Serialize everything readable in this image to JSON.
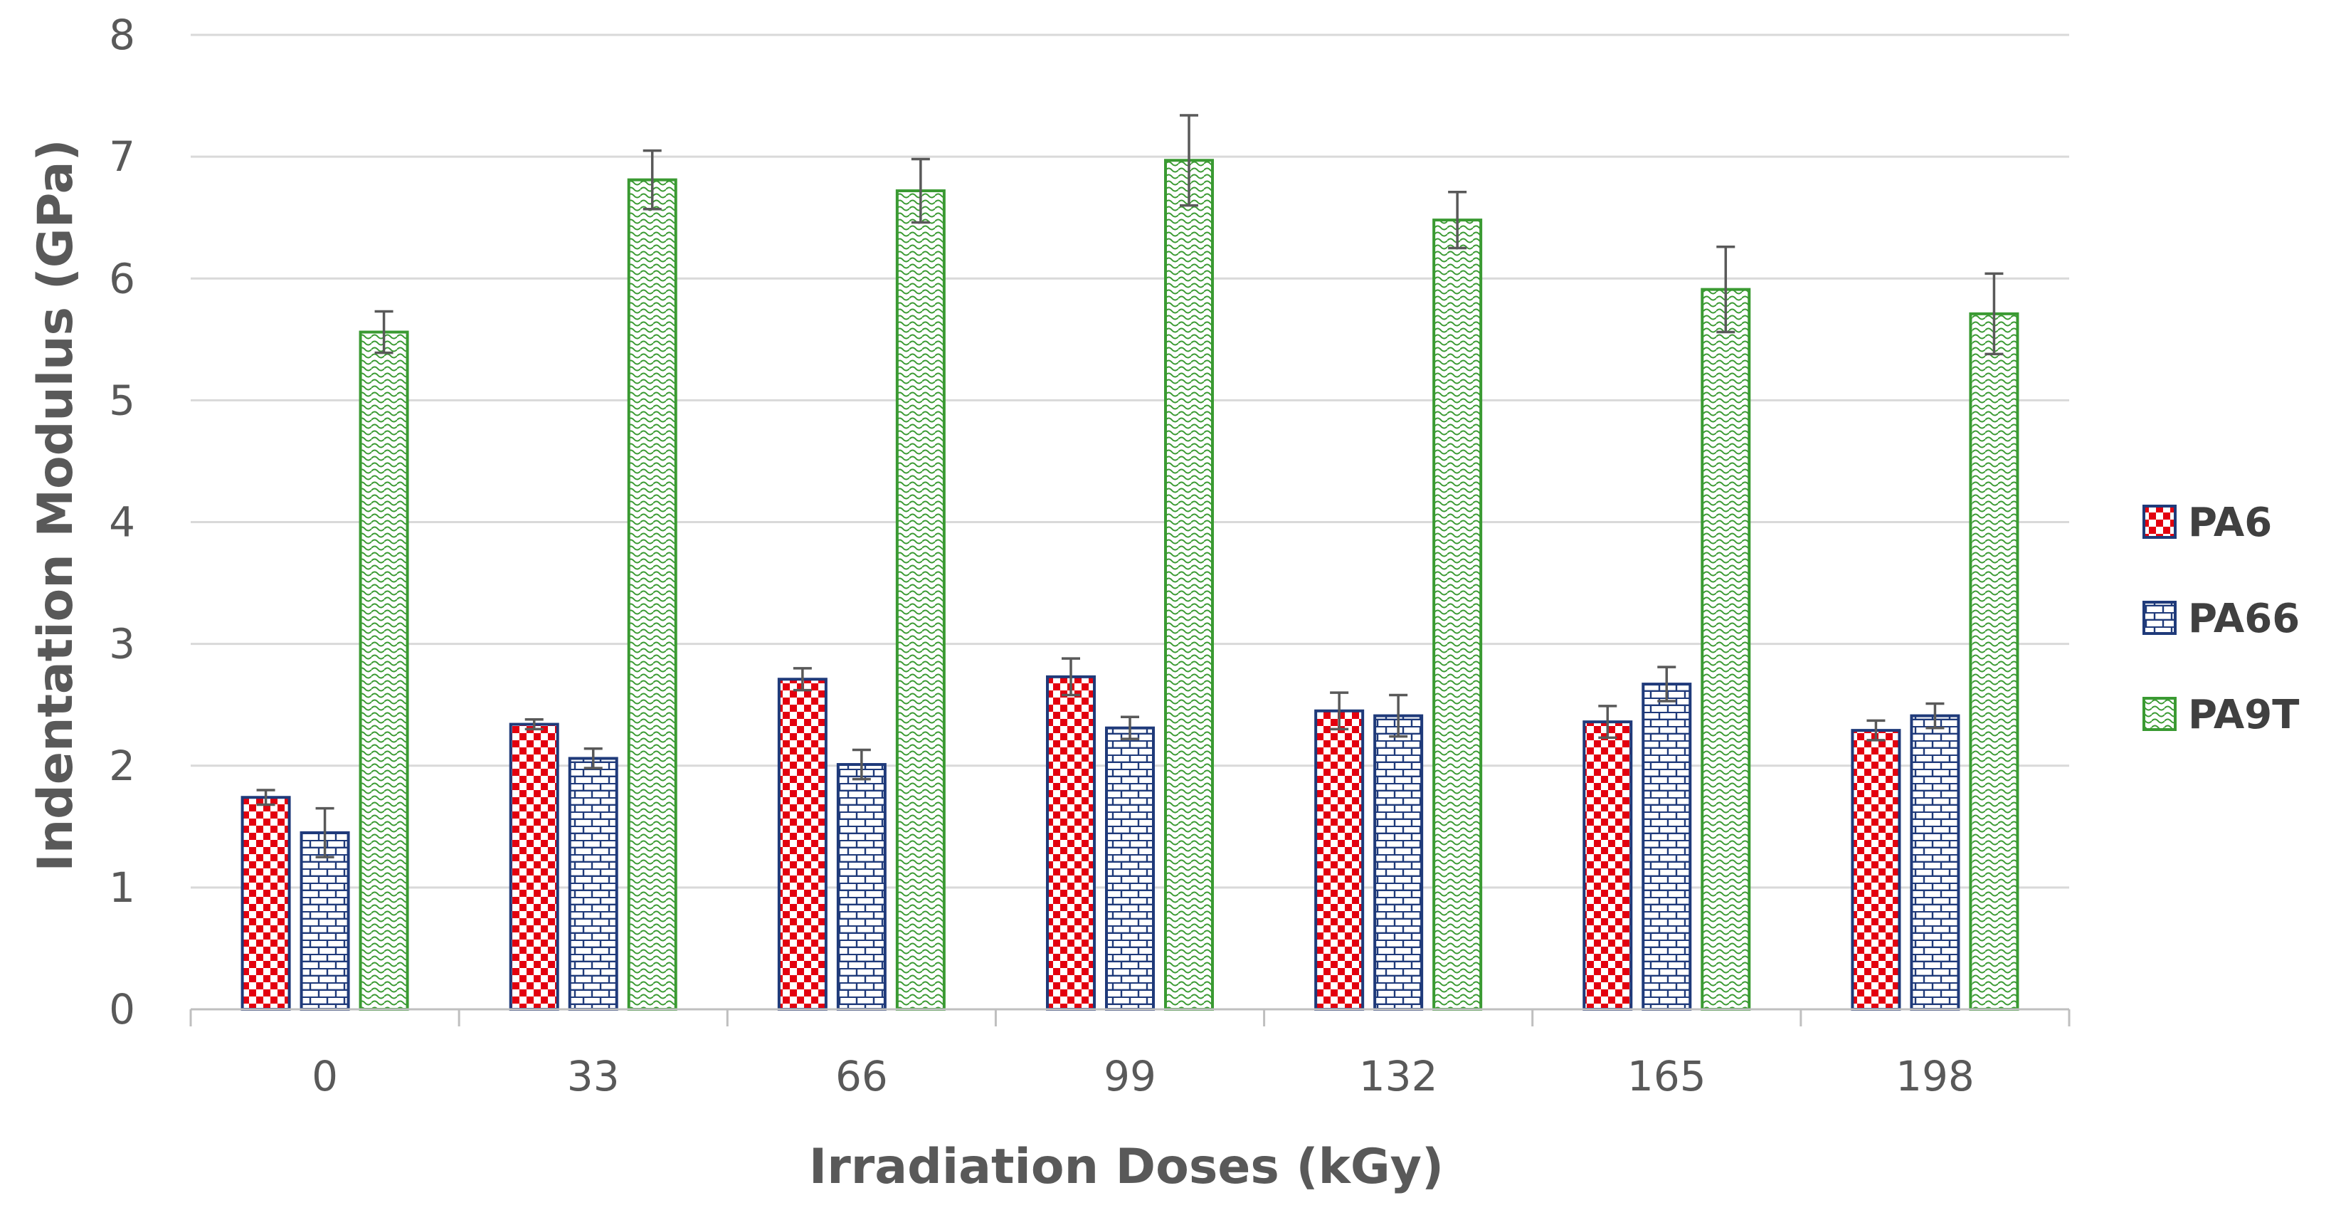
{
  "chart_data": {
    "type": "bar",
    "title": "",
    "xlabel": "Irradiation Doses (kGy)",
    "ylabel": "Indentation Modulus (GPa)",
    "categories": [
      "0",
      "33",
      "66",
      "99",
      "132",
      "165",
      "198"
    ],
    "ylim": [
      0,
      8
    ],
    "yticks": [
      "0",
      "1",
      "2",
      "3",
      "4",
      "5",
      "6",
      "7",
      "8"
    ],
    "grid": true,
    "legend_position": "right",
    "series": [
      {
        "name": "PA6",
        "color": "#e3000f",
        "border": "#1f3a7a",
        "pattern": "checkerboard",
        "values": [
          1.74,
          2.34,
          2.71,
          2.73,
          2.45,
          2.36,
          2.29
        ],
        "errors": [
          0.06,
          0.04,
          0.09,
          0.15,
          0.15,
          0.13,
          0.08
        ]
      },
      {
        "name": "PA66",
        "color": "#1f3a7a",
        "border": "#1f3a7a",
        "pattern": "brick",
        "values": [
          1.45,
          2.06,
          2.01,
          2.31,
          2.41,
          2.67,
          2.41
        ],
        "errors": [
          0.2,
          0.08,
          0.12,
          0.09,
          0.17,
          0.14,
          0.1
        ]
      },
      {
        "name": "PA9T",
        "color": "#3a9a32",
        "border": "#3a9a32",
        "pattern": "wave",
        "values": [
          5.56,
          6.81,
          6.72,
          6.97,
          6.48,
          5.91,
          5.71
        ],
        "errors": [
          0.17,
          0.24,
          0.26,
          0.37,
          0.23,
          0.35,
          0.33
        ]
      }
    ]
  }
}
